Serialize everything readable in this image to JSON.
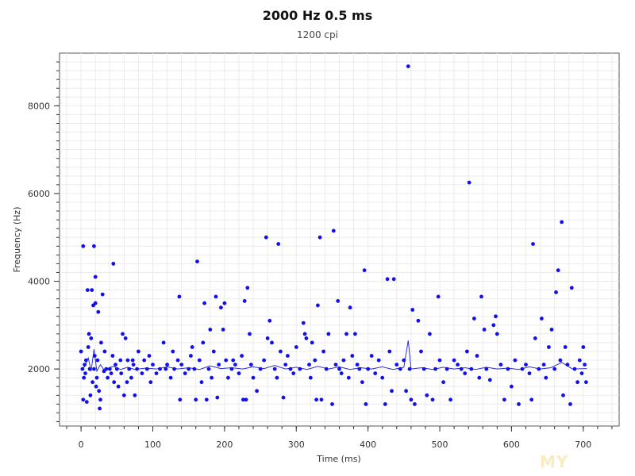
{
  "chart_data": {
    "type": "scatter",
    "title": "2000 Hz 0.5 ms",
    "subtitle": "1200 cpi",
    "xlabel": "Time (ms)",
    "ylabel": "Frequency (Hz)",
    "xlim": [
      -30,
      750
    ],
    "ylim": [
      700,
      9200
    ],
    "xticks": [
      0,
      100,
      200,
      300,
      400,
      500,
      600,
      700
    ],
    "yticks": [
      2000,
      4000,
      6000,
      8000
    ],
    "grid": true,
    "legend": "none",
    "colors": {
      "points": "#1010ee",
      "line": "#3030cc",
      "grid": "#ebebeb",
      "axis": "#333333"
    },
    "series": [
      {
        "type": "scatter",
        "points": [
          [
            0,
            2400
          ],
          [
            2,
            2000
          ],
          [
            3,
            1300
          ],
          [
            3,
            4800
          ],
          [
            4,
            1800
          ],
          [
            5,
            2100
          ],
          [
            6,
            1900
          ],
          [
            7,
            2200
          ],
          [
            8,
            1250
          ],
          [
            9,
            3800
          ],
          [
            10,
            2500
          ],
          [
            11,
            2800
          ],
          [
            12,
            2000
          ],
          [
            13,
            1400
          ],
          [
            14,
            2700
          ],
          [
            15,
            3800
          ],
          [
            16,
            1700
          ],
          [
            17,
            3450
          ],
          [
            18,
            4800
          ],
          [
            18,
            2000
          ],
          [
            19,
            2300
          ],
          [
            20,
            3500
          ],
          [
            20,
            4100
          ],
          [
            21,
            1600
          ],
          [
            22,
            1800
          ],
          [
            23,
            2200
          ],
          [
            24,
            3300
          ],
          [
            25,
            1500
          ],
          [
            26,
            1100
          ],
          [
            27,
            1300
          ],
          [
            28,
            2600
          ],
          [
            30,
            3700
          ],
          [
            32,
            1950
          ],
          [
            33,
            2400
          ],
          [
            35,
            2000
          ],
          [
            37,
            1800
          ],
          [
            40,
            2000
          ],
          [
            42,
            1900
          ],
          [
            44,
            2300
          ],
          [
            45,
            4400
          ],
          [
            46,
            1700
          ],
          [
            48,
            2100
          ],
          [
            50,
            2000
          ],
          [
            52,
            1600
          ],
          [
            55,
            2200
          ],
          [
            56,
            1900
          ],
          [
            58,
            2800
          ],
          [
            60,
            1400
          ],
          [
            62,
            2700
          ],
          [
            64,
            1700
          ],
          [
            65,
            2200
          ],
          [
            67,
            2000
          ],
          [
            70,
            1800
          ],
          [
            72,
            2200
          ],
          [
            73,
            2100
          ],
          [
            75,
            1400
          ],
          [
            78,
            2000
          ],
          [
            80,
            2400
          ],
          [
            85,
            1900
          ],
          [
            88,
            2200
          ],
          [
            92,
            2000
          ],
          [
            95,
            2300
          ],
          [
            97,
            1700
          ],
          [
            100,
            2100
          ],
          [
            105,
            1900
          ],
          [
            110,
            2000
          ],
          [
            115,
            2600
          ],
          [
            118,
            2000
          ],
          [
            120,
            2100
          ],
          [
            125,
            1800
          ],
          [
            128,
            2400
          ],
          [
            130,
            2000
          ],
          [
            135,
            2200
          ],
          [
            137,
            3650
          ],
          [
            138,
            1300
          ],
          [
            140,
            2100
          ],
          [
            145,
            1900
          ],
          [
            150,
            2000
          ],
          [
            153,
            2300
          ],
          [
            155,
            2500
          ],
          [
            158,
            2000
          ],
          [
            160,
            1300
          ],
          [
            162,
            4450
          ],
          [
            165,
            2200
          ],
          [
            168,
            1700
          ],
          [
            170,
            2600
          ],
          [
            172,
            3500
          ],
          [
            175,
            1300
          ],
          [
            178,
            2000
          ],
          [
            180,
            2900
          ],
          [
            182,
            1800
          ],
          [
            185,
            2400
          ],
          [
            188,
            3650
          ],
          [
            190,
            1350
          ],
          [
            192,
            2100
          ],
          [
            195,
            3400
          ],
          [
            198,
            2900
          ],
          [
            200,
            3500
          ],
          [
            202,
            2200
          ],
          [
            205,
            1800
          ],
          [
            210,
            2000
          ],
          [
            212,
            2200
          ],
          [
            215,
            2100
          ],
          [
            220,
            1900
          ],
          [
            224,
            2300
          ],
          [
            226,
            1300
          ],
          [
            228,
            3550
          ],
          [
            230,
            1300
          ],
          [
            232,
            3850
          ],
          [
            235,
            2800
          ],
          [
            237,
            2100
          ],
          [
            240,
            1800
          ],
          [
            245,
            1500
          ],
          [
            250,
            2000
          ],
          [
            255,
            2200
          ],
          [
            258,
            5000
          ],
          [
            260,
            2700
          ],
          [
            263,
            3100
          ],
          [
            266,
            2600
          ],
          [
            270,
            2000
          ],
          [
            273,
            1800
          ],
          [
            275,
            4850
          ],
          [
            278,
            2400
          ],
          [
            282,
            1350
          ],
          [
            285,
            2100
          ],
          [
            288,
            2300
          ],
          [
            292,
            2000
          ],
          [
            296,
            1900
          ],
          [
            300,
            2500
          ],
          [
            305,
            2000
          ],
          [
            310,
            3050
          ],
          [
            312,
            2800
          ],
          [
            314,
            2700
          ],
          [
            318,
            2100
          ],
          [
            320,
            1800
          ],
          [
            322,
            2600
          ],
          [
            326,
            2200
          ],
          [
            328,
            1300
          ],
          [
            330,
            3450
          ],
          [
            333,
            5000
          ],
          [
            335,
            1300
          ],
          [
            338,
            2400
          ],
          [
            342,
            2000
          ],
          [
            345,
            2800
          ],
          [
            350,
            1200
          ],
          [
            352,
            5150
          ],
          [
            355,
            2100
          ],
          [
            358,
            3550
          ],
          [
            360,
            2000
          ],
          [
            363,
            1900
          ],
          [
            366,
            2200
          ],
          [
            370,
            2800
          ],
          [
            373,
            1800
          ],
          [
            375,
            3400
          ],
          [
            378,
            2300
          ],
          [
            382,
            2800
          ],
          [
            385,
            2100
          ],
          [
            388,
            2000
          ],
          [
            392,
            1700
          ],
          [
            395,
            4250
          ],
          [
            397,
            1200
          ],
          [
            400,
            2000
          ],
          [
            405,
            2300
          ],
          [
            410,
            1900
          ],
          [
            415,
            2200
          ],
          [
            420,
            1800
          ],
          [
            424,
            1200
          ],
          [
            427,
            4050
          ],
          [
            430,
            2400
          ],
          [
            433,
            1500
          ],
          [
            436,
            4050
          ],
          [
            440,
            2100
          ],
          [
            445,
            2000
          ],
          [
            450,
            2200
          ],
          [
            453,
            1500
          ],
          [
            456,
            8900
          ],
          [
            458,
            2000
          ],
          [
            460,
            1300
          ],
          [
            462,
            3350
          ],
          [
            465,
            1200
          ],
          [
            470,
            3100
          ],
          [
            474,
            2400
          ],
          [
            478,
            2000
          ],
          [
            482,
            1400
          ],
          [
            486,
            2800
          ],
          [
            490,
            1300
          ],
          [
            494,
            2000
          ],
          [
            498,
            3650
          ],
          [
            500,
            2200
          ],
          [
            505,
            1700
          ],
          [
            510,
            2000
          ],
          [
            515,
            1300
          ],
          [
            520,
            2200
          ],
          [
            525,
            2100
          ],
          [
            530,
            2000
          ],
          [
            535,
            1900
          ],
          [
            538,
            2400
          ],
          [
            541,
            6250
          ],
          [
            544,
            2000
          ],
          [
            548,
            3150
          ],
          [
            552,
            2300
          ],
          [
            555,
            1800
          ],
          [
            558,
            3650
          ],
          [
            562,
            2900
          ],
          [
            565,
            2000
          ],
          [
            570,
            1750
          ],
          [
            575,
            3000
          ],
          [
            578,
            3200
          ],
          [
            580,
            2800
          ],
          [
            585,
            2100
          ],
          [
            590,
            1300
          ],
          [
            595,
            2000
          ],
          [
            600,
            1600
          ],
          [
            605,
            2200
          ],
          [
            610,
            1200
          ],
          [
            615,
            2000
          ],
          [
            620,
            2100
          ],
          [
            625,
            1900
          ],
          [
            628,
            1300
          ],
          [
            630,
            4850
          ],
          [
            633,
            2700
          ],
          [
            638,
            2000
          ],
          [
            642,
            3150
          ],
          [
            645,
            2100
          ],
          [
            648,
            1800
          ],
          [
            652,
            2500
          ],
          [
            656,
            2900
          ],
          [
            660,
            2000
          ],
          [
            662,
            3750
          ],
          [
            665,
            4250
          ],
          [
            668,
            2200
          ],
          [
            670,
            5350
          ],
          [
            672,
            1400
          ],
          [
            675,
            2500
          ],
          [
            678,
            2100
          ],
          [
            682,
            1200
          ],
          [
            684,
            3850
          ],
          [
            688,
            2000
          ],
          [
            692,
            1700
          ],
          [
            695,
            2200
          ],
          [
            698,
            1900
          ],
          [
            700,
            2500
          ],
          [
            702,
            2100
          ],
          [
            704,
            1700
          ]
        ]
      },
      {
        "type": "line",
        "points": [
          [
            0,
            2000
          ],
          [
            5,
            2050
          ],
          [
            10,
            2250
          ],
          [
            14,
            1950
          ],
          [
            18,
            2450
          ],
          [
            22,
            1950
          ],
          [
            27,
            2100
          ],
          [
            32,
            1980
          ],
          [
            38,
            2020
          ],
          [
            45,
            2060
          ],
          [
            55,
            1990
          ],
          [
            65,
            2040
          ],
          [
            75,
            1990
          ],
          [
            90,
            2020
          ],
          [
            105,
            2000
          ],
          [
            120,
            2050
          ],
          [
            135,
            2000
          ],
          [
            150,
            2030
          ],
          [
            165,
            1990
          ],
          [
            180,
            2070
          ],
          [
            195,
            2010
          ],
          [
            210,
            2030
          ],
          [
            225,
            2000
          ],
          [
            240,
            2050
          ],
          [
            255,
            2010
          ],
          [
            270,
            2080
          ],
          [
            285,
            2000
          ],
          [
            300,
            2040
          ],
          [
            315,
            1990
          ],
          [
            330,
            2060
          ],
          [
            345,
            2000
          ],
          [
            360,
            2050
          ],
          [
            375,
            1990
          ],
          [
            390,
            2030
          ],
          [
            405,
            2000
          ],
          [
            420,
            2050
          ],
          [
            435,
            1990
          ],
          [
            450,
            2040
          ],
          [
            456,
            2650
          ],
          [
            460,
            2000
          ],
          [
            475,
            2030
          ],
          [
            490,
            1990
          ],
          [
            505,
            2040
          ],
          [
            520,
            2000
          ],
          [
            535,
            2030
          ],
          [
            550,
            1990
          ],
          [
            565,
            2040
          ],
          [
            580,
            2000
          ],
          [
            595,
            2020
          ],
          [
            610,
            1990
          ],
          [
            625,
            2050
          ],
          [
            640,
            2000
          ],
          [
            655,
            2030
          ],
          [
            670,
            2150
          ],
          [
            685,
            2000
          ],
          [
            705,
            2010
          ]
        ]
      }
    ]
  },
  "watermark": "MY"
}
